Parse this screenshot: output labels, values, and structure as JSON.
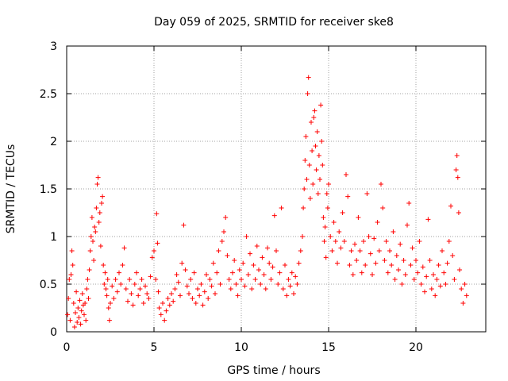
{
  "chart_data": {
    "type": "scatter",
    "title": "Day 059 of 2025, SRMTID for receiver ske8",
    "xlabel": "GPS time / hours",
    "ylabel": "SRMTID / TECUs",
    "xlim": [
      0,
      24
    ],
    "ylim": [
      0,
      3
    ],
    "x_ticks": [
      0,
      5,
      10,
      15,
      20
    ],
    "y_ticks": [
      0,
      0.5,
      1,
      1.5,
      2,
      2.5,
      3
    ],
    "x_tick_labels": [
      "0",
      "5",
      "10",
      "15",
      "20"
    ],
    "y_tick_labels": [
      "0",
      "0.5",
      "1",
      "1.5",
      "2",
      "2.5",
      "3"
    ],
    "grid": true,
    "marker": "+",
    "color": "#ff0000",
    "series": [
      {
        "name": "SRMTID",
        "points": [
          [
            0.05,
            0.18
          ],
          [
            0.1,
            0.35
          ],
          [
            0.15,
            0.55
          ],
          [
            0.2,
            0.12
          ],
          [
            0.25,
            0.6
          ],
          [
            0.3,
            0.85
          ],
          [
            0.35,
            0.7
          ],
          [
            0.4,
            0.3
          ],
          [
            0.45,
            0.05
          ],
          [
            0.5,
            0.2
          ],
          [
            0.55,
            0.42
          ],
          [
            0.6,
            0.1
          ],
          [
            0.65,
            0.25
          ],
          [
            0.7,
            0.15
          ],
          [
            0.75,
            0.33
          ],
          [
            0.8,
            0.08
          ],
          [
            0.85,
            0.22
          ],
          [
            0.9,
            0.4
          ],
          [
            0.95,
            0.28
          ],
          [
            1.0,
            0.18
          ],
          [
            1.05,
            0.3
          ],
          [
            1.1,
            0.12
          ],
          [
            1.15,
            0.45
          ],
          [
            1.2,
            0.55
          ],
          [
            1.25,
            0.35
          ],
          [
            1.3,
            0.65
          ],
          [
            1.35,
            0.85
          ],
          [
            1.4,
            1.0
          ],
          [
            1.45,
            1.2
          ],
          [
            1.5,
            0.95
          ],
          [
            1.55,
            0.75
          ],
          [
            1.6,
            1.1
          ],
          [
            1.65,
            1.05
          ],
          [
            1.7,
            1.3
          ],
          [
            1.75,
            1.55
          ],
          [
            1.8,
            1.62
          ],
          [
            1.85,
            1.15
          ],
          [
            1.9,
            1.25
          ],
          [
            1.95,
            0.9
          ],
          [
            2.0,
            1.35
          ],
          [
            2.05,
            1.42
          ],
          [
            2.1,
            0.7
          ],
          [
            2.15,
            0.5
          ],
          [
            2.2,
            0.62
          ],
          [
            2.25,
            0.45
          ],
          [
            2.3,
            0.38
          ],
          [
            2.35,
            0.55
          ],
          [
            2.4,
            0.25
          ],
          [
            2.45,
            0.12
          ],
          [
            2.5,
            0.3
          ],
          [
            2.6,
            0.48
          ],
          [
            2.7,
            0.35
          ],
          [
            2.8,
            0.55
          ],
          [
            2.9,
            0.42
          ],
          [
            3.0,
            0.62
          ],
          [
            3.1,
            0.5
          ],
          [
            3.2,
            0.7
          ],
          [
            3.3,
            0.88
          ],
          [
            3.4,
            0.45
          ],
          [
            3.5,
            0.32
          ],
          [
            3.6,
            0.55
          ],
          [
            3.7,
            0.4
          ],
          [
            3.8,
            0.28
          ],
          [
            3.9,
            0.5
          ],
          [
            4.0,
            0.62
          ],
          [
            4.1,
            0.38
          ],
          [
            4.2,
            0.45
          ],
          [
            4.3,
            0.55
          ],
          [
            4.4,
            0.3
          ],
          [
            4.5,
            0.48
          ],
          [
            4.6,
            0.4
          ],
          [
            4.7,
            0.35
          ],
          [
            4.8,
            0.58
          ],
          [
            4.9,
            0.78
          ],
          [
            5.0,
            0.85
          ],
          [
            5.1,
            0.55
          ],
          [
            5.15,
            1.24
          ],
          [
            5.2,
            0.93
          ],
          [
            5.25,
            0.42
          ],
          [
            5.3,
            0.25
          ],
          [
            5.4,
            0.18
          ],
          [
            5.5,
            0.3
          ],
          [
            5.6,
            0.12
          ],
          [
            5.7,
            0.22
          ],
          [
            5.8,
            0.35
          ],
          [
            5.9,
            0.28
          ],
          [
            6.0,
            0.4
          ],
          [
            6.1,
            0.32
          ],
          [
            6.2,
            0.45
          ],
          [
            6.3,
            0.6
          ],
          [
            6.4,
            0.52
          ],
          [
            6.5,
            0.38
          ],
          [
            6.6,
            0.72
          ],
          [
            6.7,
            1.12
          ],
          [
            6.8,
            0.65
          ],
          [
            6.9,
            0.48
          ],
          [
            7.0,
            0.4
          ],
          [
            7.1,
            0.55
          ],
          [
            7.2,
            0.35
          ],
          [
            7.3,
            0.62
          ],
          [
            7.4,
            0.3
          ],
          [
            7.5,
            0.45
          ],
          [
            7.6,
            0.38
          ],
          [
            7.7,
            0.5
          ],
          [
            7.8,
            0.28
          ],
          [
            7.9,
            0.42
          ],
          [
            8.0,
            0.6
          ],
          [
            8.1,
            0.35
          ],
          [
            8.2,
            0.55
          ],
          [
            8.3,
            0.48
          ],
          [
            8.4,
            0.72
          ],
          [
            8.5,
            0.4
          ],
          [
            8.6,
            0.62
          ],
          [
            8.7,
            0.85
          ],
          [
            8.8,
            0.5
          ],
          [
            8.9,
            0.95
          ],
          [
            9.0,
            1.05
          ],
          [
            9.1,
            1.2
          ],
          [
            9.2,
            0.8
          ],
          [
            9.3,
            0.55
          ],
          [
            9.4,
            0.45
          ],
          [
            9.5,
            0.62
          ],
          [
            9.6,
            0.75
          ],
          [
            9.7,
            0.5
          ],
          [
            9.8,
            0.38
          ],
          [
            9.9,
            0.65
          ],
          [
            10.0,
            0.55
          ],
          [
            10.1,
            0.72
          ],
          [
            10.2,
            0.48
          ],
          [
            10.3,
            1.0
          ],
          [
            10.4,
            0.6
          ],
          [
            10.5,
            0.82
          ],
          [
            10.6,
            0.45
          ],
          [
            10.7,
            0.7
          ],
          [
            10.8,
            0.55
          ],
          [
            10.9,
            0.9
          ],
          [
            11.0,
            0.65
          ],
          [
            11.1,
            0.5
          ],
          [
            11.2,
            0.78
          ],
          [
            11.3,
            0.6
          ],
          [
            11.4,
            0.45
          ],
          [
            11.5,
            0.88
          ],
          [
            11.6,
            0.72
          ],
          [
            11.7,
            0.55
          ],
          [
            11.8,
            0.68
          ],
          [
            11.9,
            1.22
          ],
          [
            12.0,
            0.85
          ],
          [
            12.1,
            0.5
          ],
          [
            12.2,
            0.62
          ],
          [
            12.3,
            1.3
          ],
          [
            12.4,
            0.45
          ],
          [
            12.5,
            0.7
          ],
          [
            12.6,
            0.38
          ],
          [
            12.7,
            0.55
          ],
          [
            12.8,
            0.48
          ],
          [
            12.9,
            0.62
          ],
          [
            13.0,
            0.4
          ],
          [
            13.1,
            0.58
          ],
          [
            13.2,
            0.5
          ],
          [
            13.3,
            0.72
          ],
          [
            13.4,
            0.85
          ],
          [
            13.5,
            1.0
          ],
          [
            13.55,
            1.3
          ],
          [
            13.6,
            1.5
          ],
          [
            13.65,
            1.8
          ],
          [
            13.7,
            2.05
          ],
          [
            13.75,
            1.6
          ],
          [
            13.8,
            2.5
          ],
          [
            13.85,
            2.67
          ],
          [
            13.9,
            1.75
          ],
          [
            13.95,
            1.4
          ],
          [
            14.0,
            2.2
          ],
          [
            14.05,
            1.9
          ],
          [
            14.1,
            1.55
          ],
          [
            14.15,
            2.25
          ],
          [
            14.2,
            2.32
          ],
          [
            14.25,
            1.95
          ],
          [
            14.3,
            1.7
          ],
          [
            14.35,
            2.1
          ],
          [
            14.4,
            1.45
          ],
          [
            14.45,
            1.85
          ],
          [
            14.5,
            1.6
          ],
          [
            14.55,
            2.38
          ],
          [
            14.6,
            2.0
          ],
          [
            14.65,
            1.75
          ],
          [
            14.7,
            1.2
          ],
          [
            14.75,
            0.95
          ],
          [
            14.8,
            1.1
          ],
          [
            14.85,
            0.78
          ],
          [
            14.9,
            1.45
          ],
          [
            14.95,
            1.3
          ],
          [
            15.0,
            1.55
          ],
          [
            15.1,
            1.0
          ],
          [
            15.2,
            0.85
          ],
          [
            15.3,
            1.15
          ],
          [
            15.4,
            0.95
          ],
          [
            15.5,
            0.72
          ],
          [
            15.6,
            1.05
          ],
          [
            15.7,
            0.88
          ],
          [
            15.8,
            1.25
          ],
          [
            15.9,
            0.95
          ],
          [
            16.0,
            1.65
          ],
          [
            16.1,
            1.42
          ],
          [
            16.2,
            0.7
          ],
          [
            16.3,
            0.85
          ],
          [
            16.4,
            0.6
          ],
          [
            16.5,
            0.92
          ],
          [
            16.6,
            0.75
          ],
          [
            16.7,
            1.2
          ],
          [
            16.8,
            0.85
          ],
          [
            16.9,
            0.62
          ],
          [
            17.0,
            0.95
          ],
          [
            17.1,
            0.7
          ],
          [
            17.2,
            1.45
          ],
          [
            17.3,
            1.0
          ],
          [
            17.4,
            0.82
          ],
          [
            17.5,
            0.6
          ],
          [
            17.6,
            0.98
          ],
          [
            17.7,
            0.72
          ],
          [
            17.8,
            1.15
          ],
          [
            17.9,
            0.85
          ],
          [
            18.0,
            1.55
          ],
          [
            18.1,
            1.3
          ],
          [
            18.2,
            0.75
          ],
          [
            18.3,
            0.95
          ],
          [
            18.4,
            0.62
          ],
          [
            18.5,
            0.85
          ],
          [
            18.6,
            0.7
          ],
          [
            18.7,
            1.05
          ],
          [
            18.8,
            0.55
          ],
          [
            18.9,
            0.8
          ],
          [
            19.0,
            0.65
          ],
          [
            19.1,
            0.92
          ],
          [
            19.2,
            0.5
          ],
          [
            19.3,
            0.75
          ],
          [
            19.4,
            0.6
          ],
          [
            19.5,
            1.12
          ],
          [
            19.6,
            1.35
          ],
          [
            19.7,
            0.7
          ],
          [
            19.8,
            0.88
          ],
          [
            19.9,
            0.55
          ],
          [
            20.0,
            0.75
          ],
          [
            20.1,
            0.62
          ],
          [
            20.2,
            0.95
          ],
          [
            20.3,
            0.5
          ],
          [
            20.4,
            0.68
          ],
          [
            20.5,
            0.42
          ],
          [
            20.6,
            0.58
          ],
          [
            20.7,
            1.18
          ],
          [
            20.8,
            0.75
          ],
          [
            20.9,
            0.45
          ],
          [
            21.0,
            0.6
          ],
          [
            21.1,
            0.38
          ],
          [
            21.2,
            0.55
          ],
          [
            21.3,
            0.7
          ],
          [
            21.4,
            0.48
          ],
          [
            21.5,
            0.85
          ],
          [
            21.6,
            0.62
          ],
          [
            21.7,
            0.5
          ],
          [
            21.8,
            0.72
          ],
          [
            21.9,
            0.95
          ],
          [
            22.0,
            1.32
          ],
          [
            22.1,
            0.8
          ],
          [
            22.2,
            0.55
          ],
          [
            22.3,
            1.7
          ],
          [
            22.35,
            1.85
          ],
          [
            22.4,
            1.62
          ],
          [
            22.45,
            1.25
          ],
          [
            22.5,
            0.65
          ],
          [
            22.6,
            0.45
          ],
          [
            22.7,
            0.3
          ],
          [
            22.8,
            0.5
          ],
          [
            22.9,
            0.38
          ]
        ]
      }
    ]
  }
}
